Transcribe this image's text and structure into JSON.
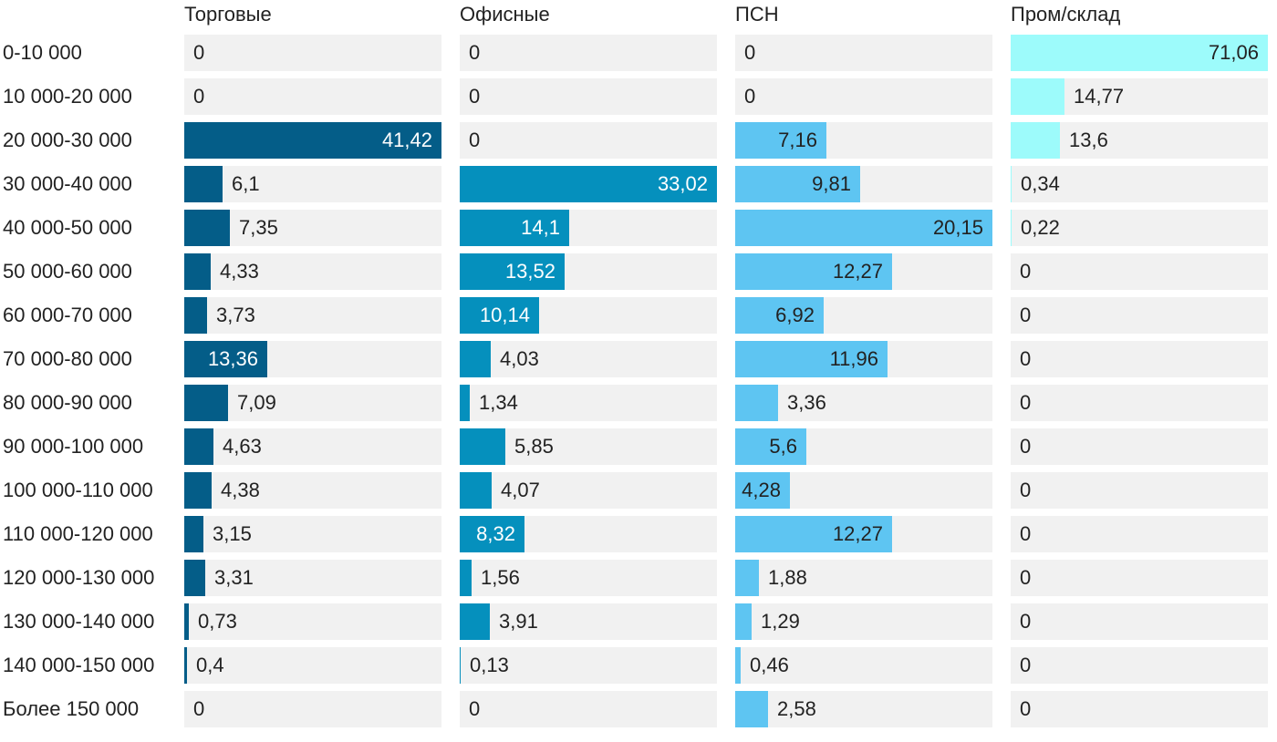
{
  "chart_data": {
    "type": "bar",
    "orientation": "horizontal",
    "layout": "small-multiples",
    "categories": [
      "0-10 000",
      "10 000-20 000",
      "20 000-30 000",
      "30 000-40 000",
      "40 000-50 000",
      "50 000-60 000",
      "60 000-70 000",
      "70 000-80 000",
      "80 000-90 000",
      "90 000-100 000",
      "100 000-110 000",
      "110 000-120 000",
      "120 000-130 000",
      "130 000-140 000",
      "140 000-150 000",
      "Более 150 000"
    ],
    "series": [
      {
        "name": "Торговые",
        "color": "#045d88",
        "label_color": "#ffffff",
        "max": 41.42,
        "values": [
          0,
          0,
          41.42,
          6.1,
          7.35,
          4.33,
          3.73,
          13.36,
          7.09,
          4.63,
          4.38,
          3.15,
          3.31,
          0.73,
          0.4,
          0
        ],
        "labels": [
          "0",
          "0",
          "41,42",
          "6,1",
          "7,35",
          "4,33",
          "3,73",
          "13,36",
          "7,09",
          "4,63",
          "4,38",
          "3,15",
          "3,31",
          "0,73",
          "0,4",
          "0"
        ]
      },
      {
        "name": "Офисные",
        "color": "#0590bd",
        "label_color": "#ffffff",
        "max": 33.02,
        "values": [
          0,
          0,
          0,
          33.02,
          14.1,
          13.52,
          10.14,
          4.03,
          1.34,
          5.85,
          4.07,
          8.32,
          1.56,
          3.91,
          0.13,
          0
        ],
        "labels": [
          "0",
          "0",
          "0",
          "33,02",
          "14,1",
          "13,52",
          "10,14",
          "4,03",
          "1,34",
          "5,85",
          "4,07",
          "8,32",
          "1,56",
          "3,91",
          "0,13",
          "0"
        ]
      },
      {
        "name": "ПСН",
        "color": "#5ec5f2",
        "label_color": "#222222",
        "max": 20.15,
        "values": [
          0,
          0,
          7.16,
          9.81,
          20.15,
          12.27,
          6.92,
          11.96,
          3.36,
          5.6,
          4.28,
          12.27,
          1.88,
          1.29,
          0.46,
          2.58
        ],
        "labels": [
          "0",
          "0",
          "7,16",
          "9,81",
          "20,15",
          "12,27",
          "6,92",
          "11,96",
          "3,36",
          "5,6",
          "4,28",
          "12,27",
          "1,88",
          "1,29",
          "0,46",
          "2,58"
        ]
      },
      {
        "name": "Пром/склад",
        "color": "#9dfbfb",
        "label_color": "#222222",
        "max": 71.06,
        "values": [
          71.06,
          14.77,
          13.6,
          0.34,
          0.22,
          0,
          0,
          0,
          0,
          0,
          0,
          0,
          0,
          0,
          0,
          0
        ],
        "labels": [
          "71,06",
          "14,77",
          "13,6",
          "0,34",
          "0,22",
          "0",
          "0",
          "0",
          "0",
          "0",
          "0",
          "0",
          "0",
          "0",
          "0",
          "0"
        ]
      }
    ],
    "title": "",
    "xlabel": "",
    "ylabel": "",
    "grid": false,
    "legend": "column titles"
  }
}
